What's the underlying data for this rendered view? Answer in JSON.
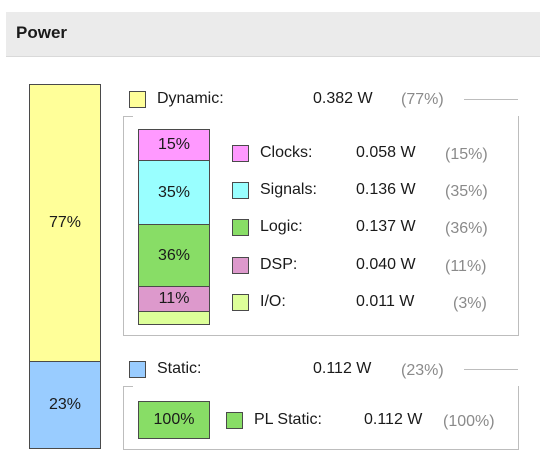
{
  "header": {
    "title": "Power"
  },
  "colors": {
    "dynamic": "#ffff99",
    "static": "#99ccff",
    "clocks": "#ff99ff",
    "signals": "#99ffff",
    "logic": "#88dd66",
    "dsp": "#dd99cc",
    "io": "#ddff99",
    "pl_static": "#88dd66"
  },
  "main_bar": {
    "dynamic_label": "77%",
    "static_label": "23%",
    "dynamic_fraction": 0.77,
    "static_fraction": 0.23
  },
  "dynamic": {
    "label": "Dynamic:",
    "value": "0.382 W",
    "percent": "(77%)",
    "bar": [
      {
        "name": "clocks",
        "label": "15%",
        "fraction": 0.15
      },
      {
        "name": "signals",
        "label": "35%",
        "fraction": 0.35
      },
      {
        "name": "logic",
        "label": "36%",
        "fraction": 0.36
      },
      {
        "name": "dsp",
        "label": "11%",
        "fraction": 0.11
      },
      {
        "name": "io",
        "label": "",
        "fraction": 0.03
      }
    ],
    "items": [
      {
        "label": "Clocks:",
        "value": "0.058 W",
        "percent": "(15%)"
      },
      {
        "label": "Signals:",
        "value": "0.136 W",
        "percent": "(35%)"
      },
      {
        "label": "Logic:",
        "value": "0.137 W",
        "percent": "(36%)"
      },
      {
        "label": "DSP:",
        "value": "0.040 W",
        "percent": "(11%)"
      },
      {
        "label": "I/O:",
        "value": "0.011 W",
        "percent": "(3%)"
      }
    ]
  },
  "static": {
    "label": "Static:",
    "value": "0.112 W",
    "percent": "(23%)",
    "bar_label": "100%",
    "items": [
      {
        "label": "PL Static:",
        "value": "0.112 W",
        "percent": "(100%)"
      }
    ]
  }
}
